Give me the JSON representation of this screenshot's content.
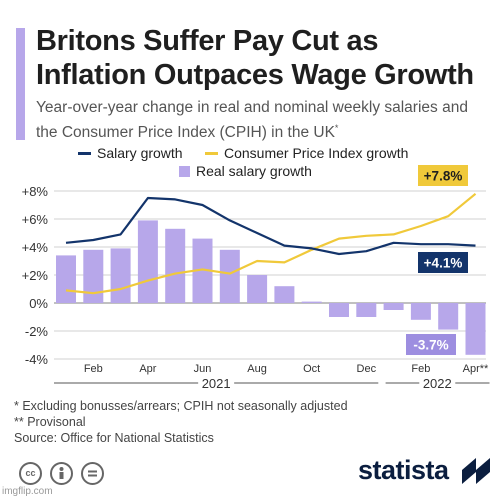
{
  "header": {
    "title": "Britons Suffer Pay Cut as Inflation Outpaces Wage Growth",
    "subtitle": "Year-over-year change in real and nominal weekly salaries and the Consumer Price Index (CPIH) in the UK",
    "subtitle_mark": "*"
  },
  "legend": {
    "salary": "Salary growth",
    "cpih": "Consumer Price Index growth",
    "real": "Real salary growth"
  },
  "colors": {
    "salary": "#13346b",
    "cpih": "#f0c93a",
    "real": "#b7a7ea",
    "accent": "#b7a7ea",
    "grid": "#d0d0d0"
  },
  "chart_data": {
    "type": "bar+line",
    "x": [
      "Jan 2021",
      "Feb 2021",
      "Mar 2021",
      "Apr 2021",
      "May 2021",
      "Jun 2021",
      "Jul 2021",
      "Aug 2021",
      "Sep 2021",
      "Oct 2021",
      "Nov 2021",
      "Dec 2021",
      "Jan 2022",
      "Feb 2022",
      "Mar 2022",
      "Apr 2022"
    ],
    "tick_labels": [
      "Feb",
      "Apr",
      "Jun",
      "Aug",
      "Oct",
      "Dec",
      "Feb",
      "Apr**"
    ],
    "tick_label_months": [
      "Feb 2021",
      "Apr 2021",
      "Jun 2021",
      "Aug 2021",
      "Oct 2021",
      "Dec 2021",
      "Feb 2022",
      "Apr 2022"
    ],
    "year_labels": [
      "2021",
      "2022"
    ],
    "y_tick_labels": [
      "+8%",
      "+6%",
      "+4%",
      "+2%",
      "0%",
      "-2%",
      "-4%"
    ],
    "ylim": [
      -4,
      8.5
    ],
    "series": [
      {
        "name": "Real salary growth",
        "kind": "bar",
        "values": [
          3.4,
          3.8,
          3.9,
          5.9,
          5.3,
          4.6,
          3.8,
          2.0,
          1.2,
          0.1,
          -1.0,
          -1.0,
          -0.5,
          -1.2,
          -1.9,
          -3.7
        ]
      },
      {
        "name": "Salary growth",
        "kind": "line",
        "values": [
          4.3,
          4.5,
          4.9,
          7.5,
          7.4,
          7.0,
          5.9,
          5.0,
          4.1,
          3.9,
          3.5,
          3.7,
          4.3,
          4.2,
          4.2,
          4.1
        ]
      },
      {
        "name": "Consumer Price Index growth",
        "kind": "line",
        "values": [
          0.9,
          0.7,
          1.0,
          1.6,
          2.1,
          2.4,
          2.1,
          3.0,
          2.9,
          3.8,
          4.6,
          4.8,
          4.9,
          5.5,
          6.2,
          7.8
        ]
      }
    ],
    "callouts": {
      "cpih": "+7.8%",
      "salary": "+4.1%",
      "real": "-3.7%"
    }
  },
  "footnotes": {
    "line1": "*   Excluding bonusses/arrears; CPIH not seasonally adjusted",
    "line2": "** Provisonal",
    "source": "Source: Office for National Statistics"
  },
  "footer": {
    "brand": "statista",
    "license_icons": [
      "creative-commons-icon",
      "attribution-icon",
      "no-derivatives-icon"
    ],
    "watermark": "imgflip.com"
  }
}
